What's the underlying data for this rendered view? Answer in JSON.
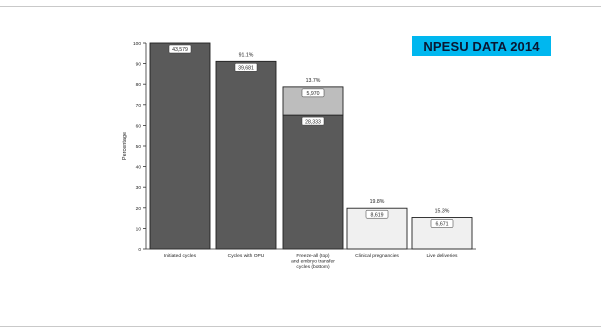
{
  "badge": {
    "text": "NPESU DATA 2014",
    "background": "#00b7ef",
    "color": "#0a1733"
  },
  "chart_data": {
    "type": "bar",
    "ylabel": "Percentage",
    "ylim": [
      0,
      100
    ],
    "yticks": [
      0,
      10,
      20,
      30,
      40,
      50,
      60,
      70,
      80,
      90,
      100
    ],
    "grid": false,
    "categories": [
      [
        "Initiated cycles"
      ],
      [
        "Cycles with OPU"
      ],
      [
        "Freeze-all (top)",
        "and embryo transfer",
        "cycles (bottom)"
      ],
      [
        "Clinical pregnancies"
      ],
      [
        "Live deliveries"
      ]
    ],
    "bars": [
      {
        "segments": [
          {
            "value": 100,
            "count": "43,579",
            "fill": "#5a5a5a"
          }
        ],
        "percent_label": ""
      },
      {
        "segments": [
          {
            "value": 91.1,
            "count": "39,681",
            "fill": "#5a5a5a"
          }
        ],
        "percent_label": "91.1%"
      },
      {
        "segments": [
          {
            "value": 65.0,
            "count": "28,333",
            "percent_label": "65.0%",
            "fill": "#5a5a5a"
          },
          {
            "value": 13.7,
            "count": "5,970",
            "fill": "#bdbdbd"
          }
        ],
        "percent_label": "13.7%"
      },
      {
        "segments": [
          {
            "value": 19.8,
            "count": "8,619",
            "fill": "#f0f0f0"
          }
        ],
        "percent_label": "19.8%"
      },
      {
        "segments": [
          {
            "value": 15.3,
            "count": "6,671",
            "fill": "#f0f0f0"
          }
        ],
        "percent_label": "15.3%"
      }
    ]
  }
}
